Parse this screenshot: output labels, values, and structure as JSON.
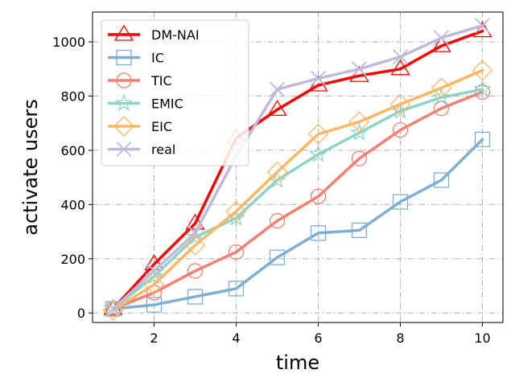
{
  "chart_data": {
    "type": "line",
    "title": "",
    "xlabel": "time",
    "ylabel": "activate users",
    "xlim": [
      0.5,
      10.5
    ],
    "ylim": [
      -35,
      1110
    ],
    "x_ticks": [
      2,
      4,
      6,
      8,
      10
    ],
    "y_ticks": [
      0,
      200,
      400,
      600,
      800,
      1000
    ],
    "grid": true,
    "legend_position": "top-left",
    "x": [
      1,
      2,
      3,
      4,
      5,
      6,
      7,
      8,
      9,
      10
    ],
    "series": [
      {
        "name": "DM-NAI",
        "color": "#ff0000",
        "marker": "triangle",
        "values": [
          15,
          180,
          330,
          645,
          750,
          840,
          875,
          900,
          985,
          1040
        ]
      },
      {
        "name": "IC",
        "color": "#7eaed1",
        "marker": "square",
        "values": [
          15,
          30,
          60,
          90,
          205,
          295,
          305,
          410,
          490,
          640
        ]
      },
      {
        "name": "TIC",
        "color": "#f47f72",
        "marker": "circle",
        "values": [
          15,
          75,
          155,
          225,
          340,
          430,
          570,
          675,
          755,
          815
        ]
      },
      {
        "name": "EMIC",
        "color": "#8ed3c7",
        "marker": "star",
        "values": [
          15,
          135,
          280,
          350,
          490,
          585,
          665,
          745,
          795,
          825
        ]
      },
      {
        "name": "EIC",
        "color": "#fdb662",
        "marker": "diamond",
        "values": [
          10,
          105,
          250,
          375,
          520,
          660,
          705,
          770,
          830,
          895
        ]
      },
      {
        "name": "real",
        "color": "#bebada",
        "marker": "x",
        "values": [
          15,
          155,
          295,
          580,
          825,
          865,
          900,
          945,
          1015,
          1060
        ]
      }
    ]
  }
}
